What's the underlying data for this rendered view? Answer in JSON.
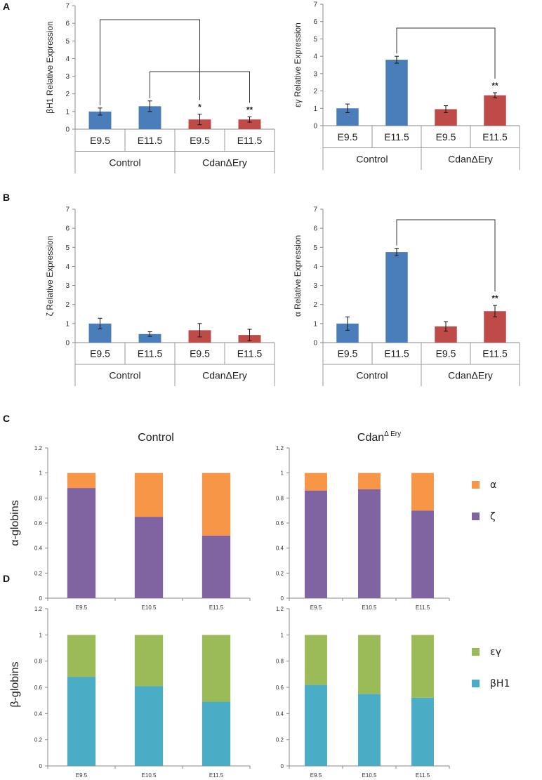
{
  "panel_letters": [
    "A",
    "B",
    "C",
    "D"
  ],
  "colors": {
    "control": "#4a7ebb",
    "mutant": "#be4b48",
    "alpha": "#f79646",
    "zeta": "#8064a2",
    "epsilon_gamma": "#9bbb59",
    "betaH1": "#4bacc6"
  },
  "chart_data": [
    {
      "id": "A-left",
      "type": "bar",
      "ylabel": "βH1 Relative Expression",
      "ylim": [
        0,
        7
      ],
      "yticks": [
        0,
        1,
        2,
        3,
        4,
        5,
        6,
        7
      ],
      "groups": [
        "Control",
        "CdanΔEry"
      ],
      "categories": [
        "E9.5",
        "E11.5",
        "E9.5",
        "E11.5"
      ],
      "values": [
        1.0,
        1.3,
        0.55,
        0.55
      ],
      "errors": [
        0.2,
        0.3,
        0.3,
        0.15
      ],
      "significance": [
        "",
        "",
        "*",
        "**"
      ],
      "brackets": [
        [
          0,
          2
        ],
        [
          1,
          3
        ]
      ]
    },
    {
      "id": "A-right",
      "type": "bar",
      "ylabel": "εγ Relative Expression",
      "ylim": [
        0,
        7
      ],
      "yticks": [
        0,
        1,
        2,
        3,
        4,
        5,
        6,
        7
      ],
      "groups": [
        "Control",
        "CdanΔEry"
      ],
      "categories": [
        "E9.5",
        "E11.5",
        "E9.5",
        "E11.5"
      ],
      "values": [
        1.0,
        3.8,
        0.95,
        1.75
      ],
      "errors": [
        0.25,
        0.2,
        0.2,
        0.15
      ],
      "significance": [
        "",
        "",
        "",
        "**"
      ],
      "brackets": [
        [
          1,
          3
        ]
      ]
    },
    {
      "id": "B-left",
      "type": "bar",
      "ylabel": "ζ Relative Expression",
      "ylim": [
        0,
        7
      ],
      "yticks": [
        0,
        1,
        2,
        3,
        4,
        5,
        6,
        7
      ],
      "groups": [
        "Control",
        "CdanΔEry"
      ],
      "categories": [
        "E9.5",
        "E11.5",
        "E9.5",
        "E11.5"
      ],
      "values": [
        1.0,
        0.45,
        0.65,
        0.4
      ],
      "errors": [
        0.28,
        0.12,
        0.35,
        0.3
      ],
      "significance": [
        "",
        "",
        "",
        ""
      ],
      "brackets": []
    },
    {
      "id": "B-right",
      "type": "bar",
      "ylabel": "α Relative Expression",
      "ylim": [
        0,
        7
      ],
      "yticks": [
        0,
        1,
        2,
        3,
        4,
        5,
        6,
        7
      ],
      "groups": [
        "Control",
        "CdanΔEry"
      ],
      "categories": [
        "E9.5",
        "E11.5",
        "E9.5",
        "E11.5"
      ],
      "values": [
        1.0,
        4.75,
        0.85,
        1.65
      ],
      "errors": [
        0.35,
        0.2,
        0.25,
        0.3
      ],
      "significance": [
        "",
        "",
        "",
        "**"
      ],
      "brackets": [
        [
          1,
          3
        ]
      ]
    },
    {
      "id": "C-left",
      "type": "stacked-bar",
      "title": "Control",
      "ylabel": "α-globins",
      "ylim": [
        0,
        1.2
      ],
      "yticks": [
        "0",
        "0.2",
        "0.4",
        "0.6",
        "0.8",
        "1",
        "1.2"
      ],
      "categories": [
        "E9.5",
        "E10.5",
        "E11.5"
      ],
      "series": [
        {
          "name": "ζ",
          "values": [
            0.88,
            0.65,
            0.5
          ]
        },
        {
          "name": "α",
          "values": [
            0.12,
            0.35,
            0.5
          ]
        }
      ]
    },
    {
      "id": "C-right",
      "type": "stacked-bar",
      "title": "Cdan",
      "title_sup": "Δ Ery",
      "ylim": [
        0,
        1.2
      ],
      "yticks": [
        "0",
        "0.2",
        "0.4",
        "0.6",
        "0.8",
        "1",
        "1.2"
      ],
      "categories": [
        "E9.5",
        "E10.5",
        "E11.5"
      ],
      "series": [
        {
          "name": "ζ",
          "values": [
            0.86,
            0.87,
            0.7
          ]
        },
        {
          "name": "α",
          "values": [
            0.14,
            0.13,
            0.3
          ]
        }
      ],
      "legend": [
        "α",
        "ζ"
      ]
    },
    {
      "id": "D-left",
      "type": "stacked-bar",
      "ylabel": "β-globins",
      "ylim": [
        0,
        1.2
      ],
      "yticks": [
        "0",
        "0.2",
        "0.4",
        "0.6",
        "0.8",
        "1",
        "1.2"
      ],
      "categories": [
        "E9.5",
        "E10.5",
        "E11.5"
      ],
      "series": [
        {
          "name": "βH1",
          "values": [
            0.68,
            0.61,
            0.49
          ]
        },
        {
          "name": "εγ",
          "values": [
            0.32,
            0.39,
            0.51
          ]
        }
      ]
    },
    {
      "id": "D-right",
      "type": "stacked-bar",
      "ylim": [
        0,
        1.2
      ],
      "yticks": [
        "0",
        "0.2",
        "0.4",
        "0.6",
        "0.8",
        "1",
        "1.2"
      ],
      "categories": [
        "E9.5",
        "E10.5",
        "E11.5"
      ],
      "series": [
        {
          "name": "βH1",
          "values": [
            0.62,
            0.55,
            0.52
          ]
        },
        {
          "name": "εγ",
          "values": [
            0.38,
            0.45,
            0.48
          ]
        }
      ],
      "legend": [
        "εγ",
        "βH1"
      ]
    }
  ]
}
